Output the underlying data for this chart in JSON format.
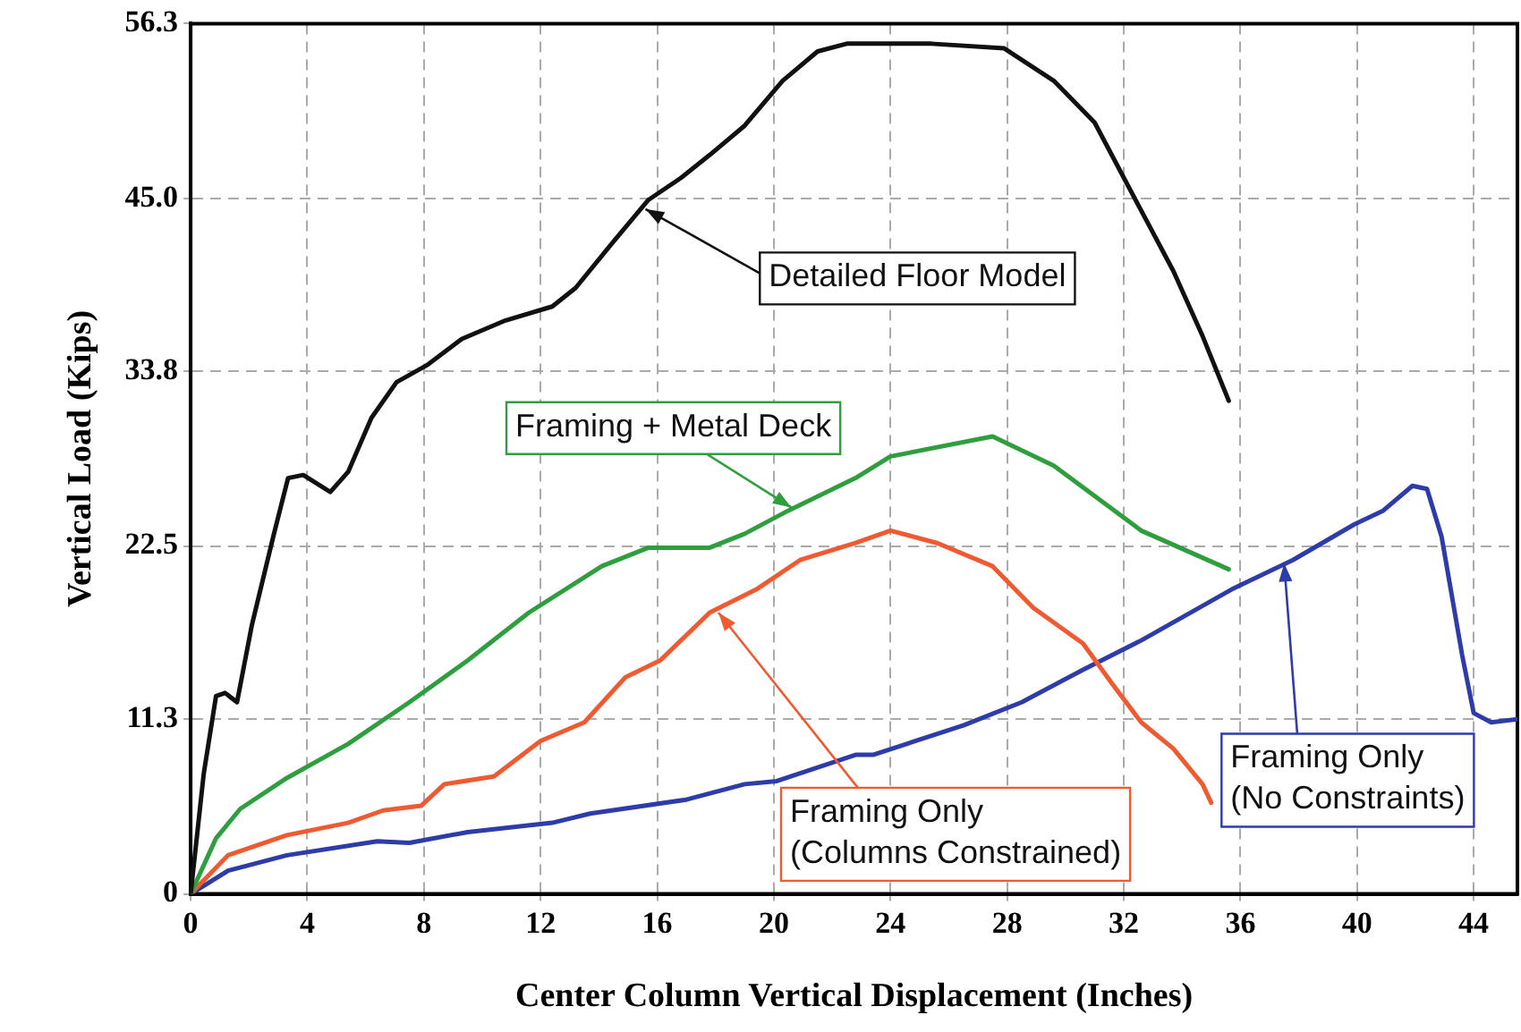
{
  "chart_data": {
    "type": "line",
    "xlabel": "Center Column Vertical Displacement (Inches)",
    "ylabel": "Vertical Load (Kips)",
    "xlim": [
      0,
      45.5
    ],
    "xticks": [
      0,
      4,
      8,
      12,
      16,
      20,
      24,
      28,
      32,
      36,
      40,
      44
    ],
    "ylim": [
      0,
      56.3
    ],
    "yticks": [
      0,
      11.3,
      22.5,
      33.8,
      {
        "value": 45,
        "label": "45.0"
      },
      56.3
    ],
    "grid": true,
    "legend": false,
    "marker": "none",
    "line_style": "solid",
    "series": [
      {
        "color": "#111111",
        "x": [
          0,
          0.45,
          0.87,
          1.18,
          1.59,
          2.1,
          2.83,
          3.34,
          3.86,
          4.79,
          5.4,
          6.2,
          7.06,
          8.1,
          9.3,
          10.8,
          12.4,
          13.2,
          14.5,
          15.7,
          16.8,
          17.8,
          19.0,
          20.3,
          21.5,
          22.5,
          25.4,
          27.9,
          29.6,
          31.0,
          32.6,
          33.7,
          34.7,
          35.6
        ],
        "values": [
          0,
          7.8,
          12.8,
          13.0,
          12.4,
          17.4,
          23.1,
          26.9,
          27.1,
          26.0,
          27.3,
          30.8,
          33.1,
          34.2,
          35.9,
          37.1,
          38.0,
          39.2,
          42.2,
          44.9,
          46.3,
          47.8,
          49.7,
          52.6,
          54.5,
          55.0,
          55.0,
          54.7,
          52.6,
          49.9,
          44.2,
          40.3,
          36.1,
          31.9
        ]
      },
      {
        "color": "#2e9e3e",
        "x": [
          0,
          0.87,
          1.7,
          3.3,
          5.4,
          7.5,
          9.5,
          11.6,
          14.1,
          15.7,
          17.8,
          19.0,
          20.5,
          22.8,
          24.0,
          27.5,
          29.6,
          32.6,
          35.6
        ],
        "values": [
          0,
          3.6,
          5.5,
          7.5,
          9.7,
          12.4,
          15.1,
          18.2,
          21.2,
          22.4,
          22.4,
          23.3,
          24.8,
          26.9,
          28.3,
          29.6,
          27.7,
          23.5,
          21.0
        ]
      },
      {
        "color": "#f05a30",
        "x": [
          0,
          1.28,
          3.3,
          5.4,
          6.6,
          7.9,
          8.7,
          10.4,
          12.0,
          13.5,
          14.9,
          16.1,
          17.8,
          19.4,
          20.9,
          22.8,
          24.0,
          25.6,
          27.5,
          28.9,
          30.6,
          31.6,
          32.6,
          33.7,
          34.7,
          35.0
        ],
        "values": [
          0,
          2.5,
          3.8,
          4.6,
          5.4,
          5.7,
          7.1,
          7.6,
          9.9,
          11.1,
          14.0,
          15.1,
          18.2,
          19.7,
          21.6,
          22.7,
          23.5,
          22.7,
          21.2,
          18.5,
          16.2,
          13.6,
          11.1,
          9.4,
          7.1,
          5.9
        ]
      },
      {
        "color": "#2d3ca8",
        "x": [
          0,
          1.28,
          3.3,
          6.4,
          7.5,
          9.5,
          12.4,
          13.7,
          17.0,
          19.0,
          20.1,
          22.8,
          23.4,
          26.5,
          28.5,
          30.6,
          32.6,
          35.7,
          37.8,
          39.9,
          40.9,
          41.9,
          42.4,
          42.9,
          43.6,
          44.0,
          44.6,
          45.5
        ],
        "values": [
          0,
          1.5,
          2.5,
          3.4,
          3.3,
          4.0,
          4.6,
          5.2,
          6.1,
          7.1,
          7.3,
          9.0,
          9.0,
          10.9,
          12.4,
          14.5,
          16.4,
          19.7,
          21.6,
          23.9,
          24.8,
          26.4,
          26.2,
          23.1,
          15.5,
          11.7,
          11.1,
          11.3
        ]
      }
    ],
    "annotations": [
      {
        "text": "Detailed Floor Model",
        "x": 15.6,
        "y": 44.3
      },
      {
        "text": "Framing + Metal Deck",
        "x": 20.6,
        "y": 25.0
      },
      {
        "text": "Framing Only\n(Columns Constrained)",
        "x": 18.1,
        "y": 18.2
      },
      {
        "text": "Framing Only\n(No Constraints)",
        "x": 37.5,
        "y": 21.4
      }
    ]
  }
}
